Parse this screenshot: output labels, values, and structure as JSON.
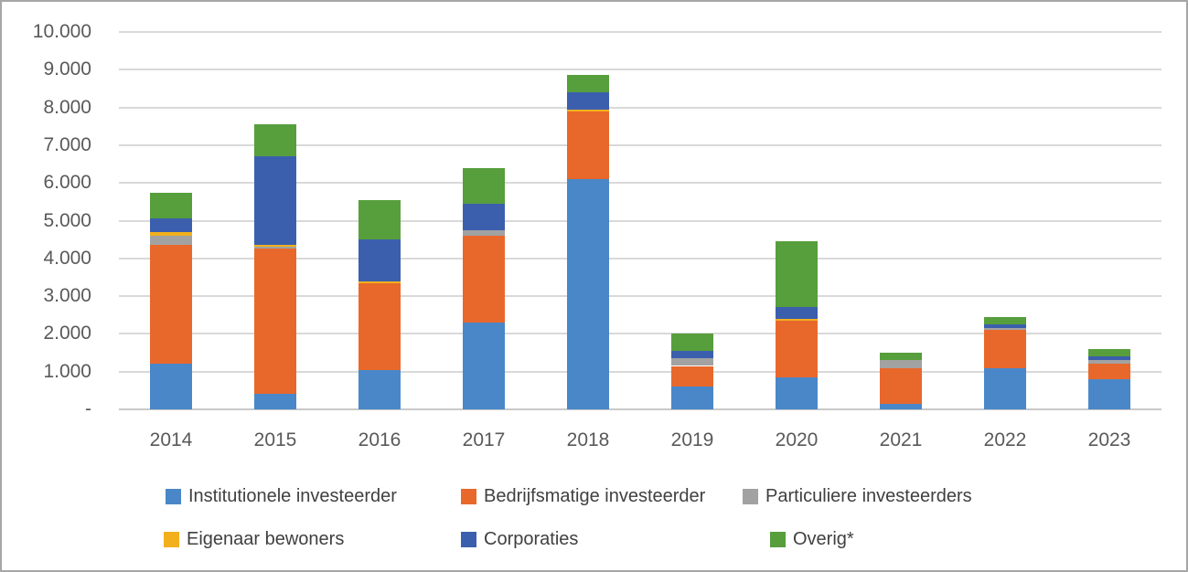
{
  "chart_data": {
    "type": "bar",
    "stacked": true,
    "title": "",
    "xlabel": "",
    "ylabel": "",
    "categories": [
      "2014",
      "2015",
      "2016",
      "2017",
      "2018",
      "2019",
      "2020",
      "2021",
      "2022",
      "2023"
    ],
    "series": [
      {
        "name": "Institutionele investeerder",
        "color": "#4a87c8",
        "values": [
          1200,
          400,
          1050,
          2300,
          6100,
          600,
          850,
          150,
          1100,
          800
        ]
      },
      {
        "name": "Bedrijfsmatige investeerder",
        "color": "#e8682c",
        "values": [
          3150,
          3850,
          2300,
          2300,
          1800,
          550,
          1500,
          950,
          1000,
          400
        ]
      },
      {
        "name": "Particuliere investeerders",
        "color": "#a2a2a2",
        "values": [
          250,
          50,
          0,
          150,
          0,
          200,
          0,
          200,
          50,
          100
        ]
      },
      {
        "name": "Eigenaar bewoners",
        "color": "#f2b01d",
        "values": [
          100,
          50,
          50,
          0,
          50,
          0,
          50,
          0,
          0,
          0
        ]
      },
      {
        "name": "Corporaties",
        "color": "#3c5fad",
        "values": [
          350,
          2350,
          1100,
          700,
          450,
          200,
          300,
          0,
          100,
          100
        ]
      },
      {
        "name": "Overig*",
        "color": "#579e3c",
        "values": [
          700,
          850,
          1050,
          950,
          450,
          450,
          1750,
          200,
          200,
          200
        ]
      }
    ],
    "totals": [
      5750,
      7550,
      5550,
      6400,
      8850,
      2000,
      4450,
      1500,
      2450,
      1600
    ],
    "ylim": [
      0,
      10000
    ],
    "ytick_step": 1000,
    "ytick_labels": [
      "-",
      "1.000",
      "2.000",
      "3.000",
      "4.000",
      "5.000",
      "6.000",
      "7.000",
      "8.000",
      "9.000",
      "10.000"
    ],
    "grid": true,
    "legend_position": "bottom",
    "legend_rows": [
      [
        "Institutionele investeerder",
        "Bedrijfsmatige investeerder",
        "Particuliere investeerders"
      ],
      [
        "Eigenaar bewoners",
        "Corporaties",
        "Overig*"
      ]
    ]
  }
}
